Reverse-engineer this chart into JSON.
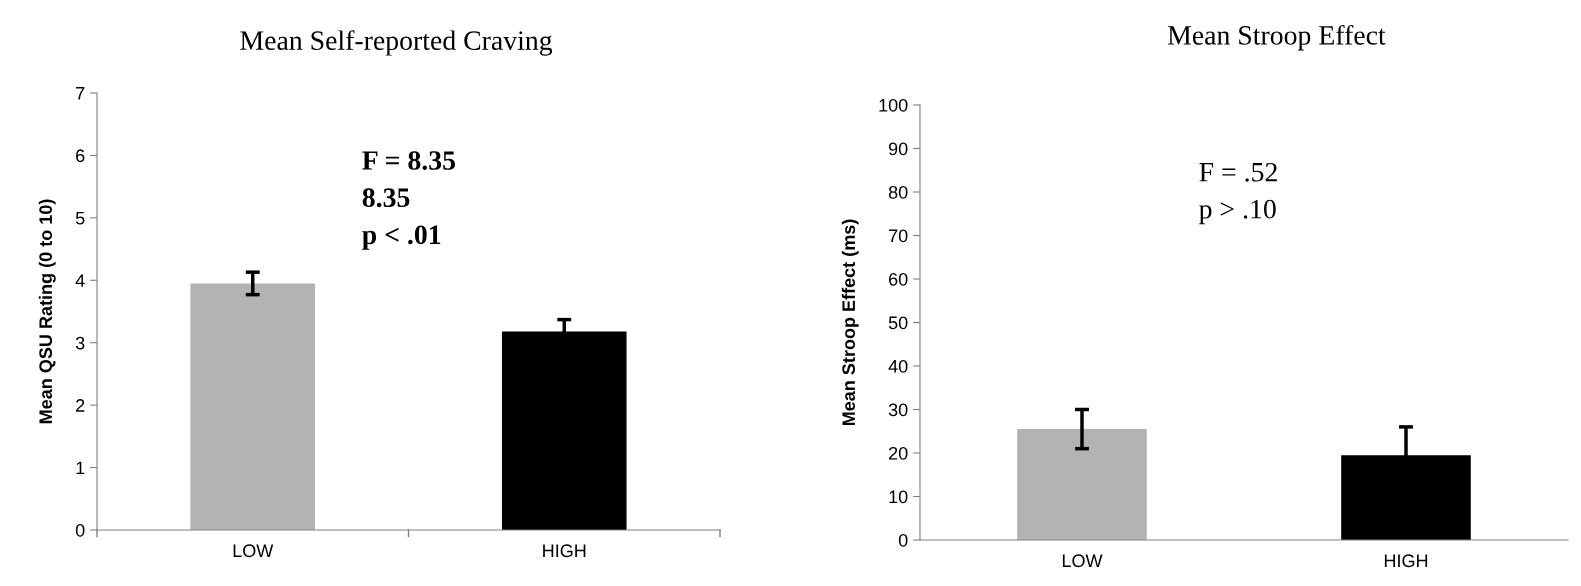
{
  "chart_data": [
    {
      "type": "bar",
      "title": "Mean Self-reported Craving",
      "ylabel": "Mean QSU Rating (0 to 10)",
      "categories": [
        "LOW",
        "HIGH"
      ],
      "values": [
        3.95,
        3.18
      ],
      "colors": [
        "#b3b3b3",
        "#000000"
      ],
      "errors": [
        0.18,
        0.19
      ],
      "ylim": [
        0,
        7
      ],
      "yticks": [
        0,
        1,
        2,
        3,
        4,
        5,
        6,
        7
      ],
      "grid": false,
      "legend": false,
      "annotations": [
        "F = 8.35",
        "8.35",
        "p < .01"
      ]
    },
    {
      "type": "bar",
      "title": "Mean Stroop Effect",
      "ylabel": "Mean Stroop Effect (ms)",
      "categories": [
        "LOW",
        "HIGH"
      ],
      "values": [
        25.5,
        19.5
      ],
      "colors": [
        "#b3b3b3",
        "#000000"
      ],
      "errors": [
        4.5,
        6.5
      ],
      "ylim": [
        0,
        100
      ],
      "yticks": [
        0,
        10,
        20,
        30,
        40,
        50,
        60,
        70,
        80,
        90,
        100
      ],
      "grid": false,
      "legend": false,
      "annotations": [
        "F = .52",
        "p > .10"
      ]
    }
  ]
}
